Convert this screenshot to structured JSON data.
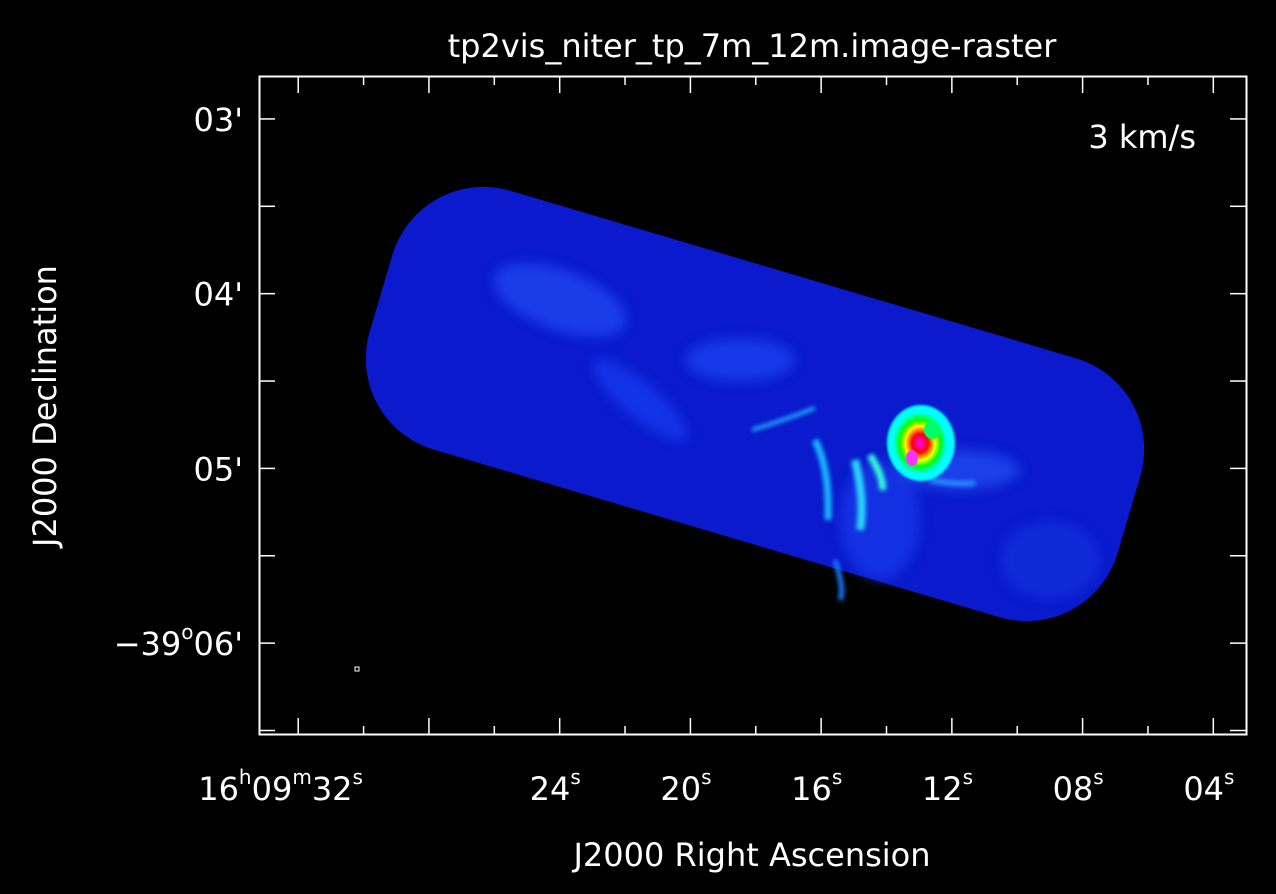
{
  "chart_data": {
    "type": "heatmap",
    "title": "tp2vis_niter_tp_7m_12m.image-raster",
    "annotation": "3 km/s",
    "xlabel": "J2000 Right Ascension",
    "ylabel": "J2000 Declination",
    "x_ticks": [
      {
        "h": "16",
        "m": "09",
        "s": "32"
      },
      {
        "s": "24"
      },
      {
        "s": "20"
      },
      {
        "s": "16"
      },
      {
        "s": "12"
      },
      {
        "s": "08"
      },
      {
        "s": "04"
      }
    ],
    "y_ticks": [
      {
        "text": "03'"
      },
      {
        "text": "04'"
      },
      {
        "text": "05'"
      },
      {
        "deg": "−39",
        "arcmin": "06'"
      }
    ],
    "ra_range_s": [
      33.2,
      3.0
    ],
    "dec_range_arcmin": [
      -2.76,
      -6.52
    ],
    "colormap": [
      "#000080",
      "#0000ff",
      "#00ffff",
      "#00ff00",
      "#ffff00",
      "#ff0000",
      "#ff00ff",
      "#ffffff"
    ],
    "peak_ra_s": 13.2,
    "peak_dec_arcmin": -4.93
  }
}
